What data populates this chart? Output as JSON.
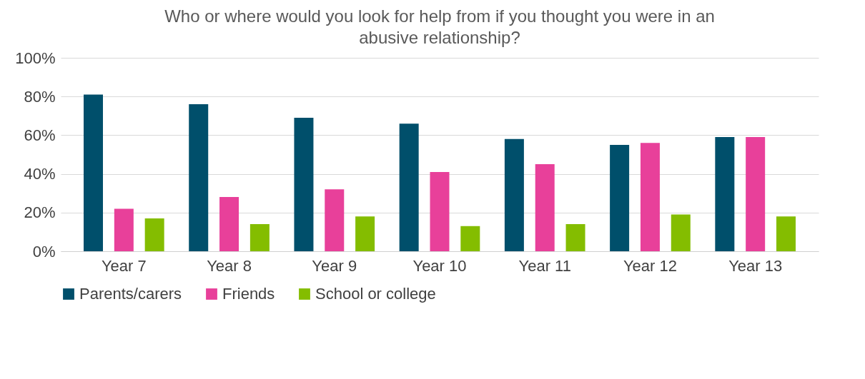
{
  "chart_data": {
    "type": "bar",
    "title": "Who or where would you look for help from if you thought you were in an abusive relationship?",
    "categories": [
      "Year 7",
      "Year 8",
      "Year 9",
      "Year 10",
      "Year 11",
      "Year 12",
      "Year 13"
    ],
    "series": [
      {
        "name": "Parents/carers",
        "color": "#004f6b",
        "values": [
          81,
          76,
          69,
          66,
          58,
          55,
          59
        ]
      },
      {
        "name": "Friends",
        "color": "#e8409a",
        "values": [
          22,
          28,
          32,
          41,
          45,
          56,
          59
        ]
      },
      {
        "name": "School or college",
        "color": "#84bd00",
        "values": [
          17,
          14,
          18,
          13,
          14,
          19,
          18
        ]
      }
    ],
    "ylim": [
      0,
      100
    ],
    "yticks": [
      {
        "value": 0,
        "label": "0%"
      },
      {
        "value": 20,
        "label": "20%"
      },
      {
        "value": 40,
        "label": "40%"
      },
      {
        "value": 60,
        "label": "60%"
      },
      {
        "value": 80,
        "label": "80%"
      },
      {
        "value": 100,
        "label": "100%"
      }
    ],
    "grid": "y",
    "legend": "bottom"
  }
}
